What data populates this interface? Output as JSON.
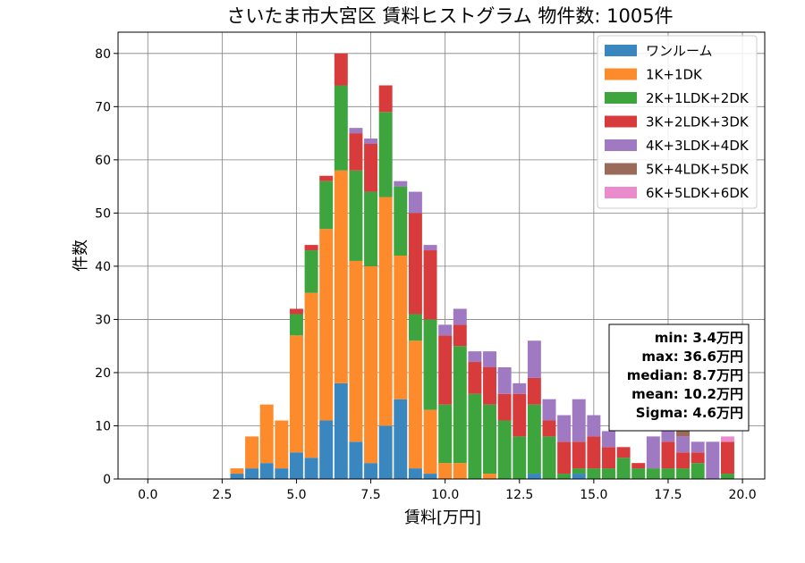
{
  "chart_data": {
    "type": "bar",
    "stacked": true,
    "title": "さいたま市大宮区 賃料ヒストグラム 物件数: 1005件",
    "xlabel": "賃料[万円]",
    "ylabel": "件数",
    "xlim": [
      -1.0,
      20.75
    ],
    "ylim": [
      0,
      84
    ],
    "xticks": [
      0.0,
      2.5,
      5.0,
      7.5,
      10.0,
      12.5,
      15.0,
      17.5,
      20.0
    ],
    "xtick_labels": [
      "0.0",
      "2.5",
      "5.0",
      "7.5",
      "10.0",
      "12.5",
      "15.0",
      "17.5",
      "20.0"
    ],
    "yticks": [
      0,
      10,
      20,
      30,
      40,
      50,
      60,
      70,
      80
    ],
    "ytick_labels": [
      "0",
      "10",
      "20",
      "30",
      "40",
      "50",
      "60",
      "70",
      "80"
    ],
    "grid": true,
    "legend_position": "top-right",
    "bin_width": 0.5,
    "x": [
      3.0,
      3.5,
      4.0,
      4.5,
      5.0,
      5.5,
      6.0,
      6.5,
      7.0,
      7.5,
      8.0,
      8.5,
      9.0,
      9.5,
      10.0,
      10.5,
      11.0,
      11.5,
      12.0,
      12.5,
      13.0,
      13.5,
      14.0,
      14.5,
      15.0,
      15.5,
      16.0,
      16.5,
      17.0,
      17.5,
      18.0,
      18.5,
      19.0,
      19.5
    ],
    "series": [
      {
        "name": "ワンルーム",
        "color": "#3a87c0",
        "values": [
          1,
          2,
          3,
          2,
          5,
          4,
          11,
          18,
          7,
          3,
          10,
          15,
          2,
          1,
          0,
          0,
          0,
          0,
          0,
          0,
          1,
          0,
          0,
          1,
          0,
          0,
          0,
          0,
          0,
          0,
          0,
          0,
          0,
          0
        ]
      },
      {
        "name": "1K+1DK",
        "color": "#fd8b2b",
        "values": [
          1,
          6,
          11,
          9,
          22,
          31,
          36,
          40,
          34,
          37,
          43,
          27,
          24,
          12,
          3,
          3,
          0,
          1,
          0,
          0,
          0,
          0,
          0,
          0,
          0,
          0,
          0,
          0,
          0,
          0,
          0,
          0,
          0,
          0
        ]
      },
      {
        "name": "2K+1LDK+2DK",
        "color": "#3ea43e",
        "values": [
          0,
          0,
          0,
          0,
          4,
          8,
          9,
          16,
          17,
          14,
          16,
          13,
          5,
          17,
          11,
          22,
          16,
          13,
          11,
          8,
          13,
          8,
          1,
          1,
          2,
          2,
          4,
          2,
          2,
          2,
          2,
          3,
          0,
          1
        ]
      },
      {
        "name": "3K+2LDK+3DK",
        "color": "#d83b3b",
        "values": [
          0,
          0,
          0,
          0,
          1,
          1,
          1,
          6,
          7,
          9,
          5,
          0,
          19,
          13,
          13,
          4,
          6,
          7,
          5,
          8,
          5,
          3,
          6,
          5,
          6,
          4,
          2,
          1,
          0,
          5,
          3,
          2,
          0,
          6
        ]
      },
      {
        "name": "4K+3LDK+4DK",
        "color": "#a079c3",
        "values": [
          0,
          0,
          0,
          0,
          0,
          0,
          0,
          0,
          1,
          1,
          0,
          1,
          4,
          1,
          2,
          3,
          2,
          3,
          5,
          2,
          7,
          4,
          5,
          8,
          4,
          3,
          0,
          0,
          6,
          3,
          3,
          2,
          7,
          0
        ]
      },
      {
        "name": "5K+4LDK+5DK",
        "color": "#9a6a5a",
        "values": [
          0,
          0,
          0,
          0,
          0,
          0,
          0,
          0,
          0,
          0,
          0,
          0,
          0,
          0,
          0,
          0,
          0,
          0,
          0,
          0,
          0,
          0,
          0,
          0,
          0,
          0,
          0,
          0,
          0,
          0,
          2,
          0,
          0,
          0
        ]
      },
      {
        "name": "6K+5LDK+6DK",
        "color": "#ea8ccb",
        "values": [
          0,
          0,
          0,
          0,
          0,
          0,
          0,
          0,
          0,
          0,
          0,
          0,
          0,
          0,
          0,
          0,
          0,
          0,
          0,
          0,
          0,
          0,
          0,
          0,
          0,
          0,
          0,
          0,
          0,
          0,
          0,
          0,
          0,
          1
        ]
      }
    ],
    "annotation": {
      "position": "right",
      "lines": [
        "min: 3.4万円",
        "max: 36.6万円",
        "median: 8.7万円",
        "mean: 10.2万円",
        "Sigma: 4.6万円"
      ]
    }
  }
}
